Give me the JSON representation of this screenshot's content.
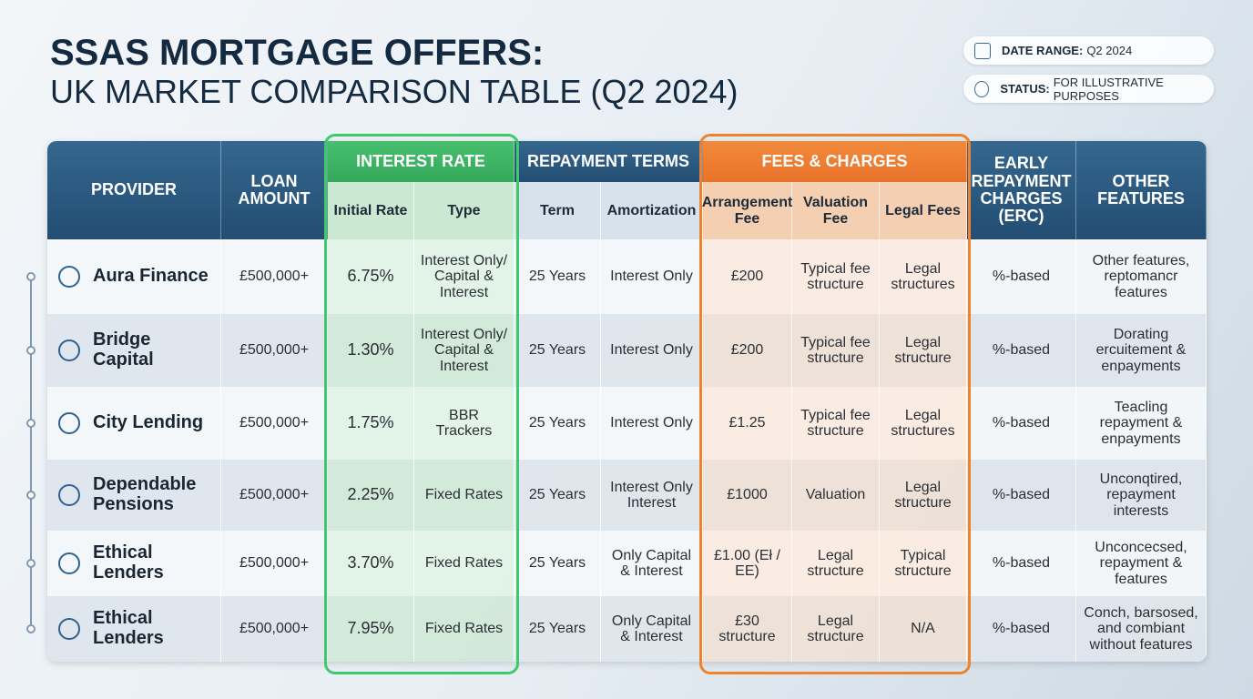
{
  "header": {
    "title": "SSAS MORTGAGE OFFERS:",
    "subtitle": "UK MARKET COMPARISON TABLE (Q2 2024)"
  },
  "badges": [
    {
      "label": "DATE RANGE:",
      "value": "Q2 2024"
    },
    {
      "label": "STATUS:",
      "value": "FOR ILLUSTRATIVE PURPOSES"
    }
  ],
  "table": {
    "header": [
      {
        "label": "PROVIDER"
      },
      {
        "label": "LOAN AMOUNT"
      },
      {
        "label": "INTEREST RATE",
        "sub": [
          "Initial Rate",
          "Type"
        ]
      },
      {
        "label": "REPAYMENT TERMS",
        "sub": [
          "Term",
          "Amortization"
        ]
      },
      {
        "label": "FEES & CHARGES",
        "sub": [
          "Arrangement Fee",
          "Valuation Fee",
          "Legal Fees"
        ]
      },
      {
        "label": "EARLY REPAYMENT CHARGES (ERC)"
      },
      {
        "label": "OTHER FEATURES"
      }
    ],
    "rows": [
      [
        "Aura Finance",
        "£500,000+",
        "6.75%",
        "Interest Only/ Capital & Interest",
        "25 Years",
        "Interest Only",
        "£200",
        "Typical fee structure",
        "Legal structures",
        "%-based",
        "Other features, reptomancr features"
      ],
      [
        "Bridge Capital",
        "£500,000+",
        "1.30%",
        "Interest Only/ Capital & Interest",
        "25 Years",
        "Interest Only",
        "£200",
        "Typical fee structure",
        "Legal structure",
        "%-based",
        "Dorating ercuitement & enpayments"
      ],
      [
        "City Lending",
        "£500,000+",
        "1.75%",
        "BBR Trackers",
        "25 Years",
        "Interest Only",
        "£1.25",
        "Typical fee structure",
        "Legal structures",
        "%-based",
        "Teacling repayment & enpayments"
      ],
      [
        "Dependable Pensions",
        "£500,000+",
        "2.25%",
        "Fixed Rates",
        "25 Years",
        "Interest Only Interest",
        "£1000",
        "Valuation",
        "Legal structure",
        "%-based",
        "Unconqtired, repayment interests"
      ],
      [
        "Ethical Lenders",
        "£500,000+",
        "3.70%",
        "Fixed Rates",
        "25 Years",
        "Only Capital & Interest",
        "£1.00 (Eł / EE)",
        "Legal structure",
        "Typical structure",
        "%-based",
        "Unconcecsed, repayment & features"
      ],
      [
        "Ethical Lenders",
        "£500,000+",
        "7.95%",
        "Fixed Rates",
        "25 Years",
        "Only Capital & Interest",
        "£30 structure",
        "Legal structure",
        "N/A",
        "%-based",
        "Conch, barsosed, and combiant without features"
      ]
    ]
  }
}
